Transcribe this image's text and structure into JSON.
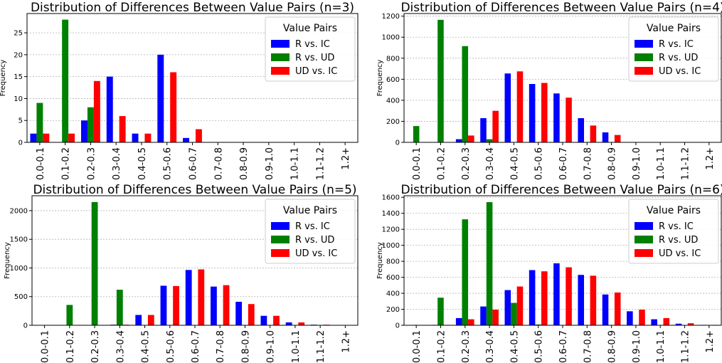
{
  "chart_data": [
    {
      "type": "bar",
      "title": "Distribution of Differences Between Value Pairs (n=3)",
      "xlabel": "",
      "ylabel": "Frequency",
      "ylim": [
        0,
        29.4
      ],
      "yticks": [
        0,
        5,
        10,
        15,
        20,
        25
      ],
      "grid": true,
      "legend": {
        "title": "Value Pairs",
        "placement": "top-right"
      },
      "categories": [
        "0.0-0.1",
        "0.1-0.2",
        "0.2-0.3",
        "0.3-0.4",
        "0.4-0.5",
        "0.5-0.6",
        "0.6-0.7",
        "0.7-0.8",
        "0.8-0.9",
        "0.9-1.0",
        "1.0-1.1",
        "1.1-1.2",
        "1.2+"
      ],
      "series": [
        {
          "name": "R vs. IC",
          "color": "#0000ff",
          "values": [
            2,
            0,
            5,
            15,
            2,
            20,
            1,
            0,
            0,
            0,
            0,
            0,
            0
          ]
        },
        {
          "name": "R vs. UD",
          "color": "#008000",
          "values": [
            9,
            28,
            8,
            0,
            0,
            0,
            0,
            0,
            0,
            0,
            0,
            0,
            0
          ]
        },
        {
          "name": "UD vs. IC",
          "color": "#ff0000",
          "values": [
            2,
            2,
            14,
            6,
            2,
            16,
            3,
            0,
            0,
            0,
            0,
            0,
            0
          ]
        }
      ]
    },
    {
      "type": "bar",
      "title": "Distribution of Differences Between Value Pairs (n=4)",
      "xlabel": "",
      "ylabel": "Frequency",
      "ylim": [
        0,
        1225
      ],
      "yticks": [
        0,
        200,
        400,
        600,
        800,
        1000,
        1200
      ],
      "grid": true,
      "legend": {
        "title": "Value Pairs",
        "placement": "top-right"
      },
      "categories": [
        "0.0-0.1",
        "0.1-0.2",
        "0.2-0.3",
        "0.3-0.4",
        "0.4-0.5",
        "0.5-0.6",
        "0.6-0.7",
        "0.7-0.8",
        "0.8-0.9",
        "0.9-1.0",
        "1.0-1.1",
        "1.1-1.2",
        "1.2+"
      ],
      "series": [
        {
          "name": "R vs. IC",
          "color": "#0000ff",
          "values": [
            0,
            0,
            30,
            230,
            655,
            555,
            465,
            230,
            95,
            0,
            0,
            0,
            0
          ]
        },
        {
          "name": "R vs. UD",
          "color": "#008000",
          "values": [
            155,
            1165,
            915,
            30,
            0,
            0,
            0,
            0,
            0,
            0,
            0,
            0,
            0
          ]
        },
        {
          "name": "UD vs. IC",
          "color": "#ff0000",
          "values": [
            0,
            0,
            65,
            300,
            675,
            565,
            425,
            160,
            70,
            0,
            0,
            0,
            0
          ]
        }
      ]
    },
    {
      "type": "bar",
      "title": "Distribution of Differences Between Value Pairs (n=5)",
      "xlabel": "",
      "ylabel": "Frequency",
      "ylim": [
        0,
        2260
      ],
      "yticks": [
        0,
        500,
        1000,
        1500,
        2000
      ],
      "grid": true,
      "legend": {
        "title": "Value Pairs",
        "placement": "top-right"
      },
      "categories": [
        "0.0-0.1",
        "0.1-0.2",
        "0.2-0.3",
        "0.3-0.4",
        "0.4-0.5",
        "0.5-0.6",
        "0.6-0.7",
        "0.7-0.8",
        "0.8-0.9",
        "0.9-1.0",
        "1.0-1.1",
        "1.1-1.2",
        "1.2+"
      ],
      "series": [
        {
          "name": "R vs. IC",
          "color": "#0000ff",
          "values": [
            0,
            0,
            0,
            10,
            180,
            690,
            965,
            675,
            410,
            165,
            50,
            10,
            5
          ]
        },
        {
          "name": "R vs. UD",
          "color": "#008000",
          "values": [
            5,
            355,
            2150,
            620,
            0,
            0,
            0,
            0,
            0,
            0,
            0,
            0,
            0
          ]
        },
        {
          "name": "UD vs. IC",
          "color": "#ff0000",
          "values": [
            0,
            0,
            0,
            10,
            180,
            685,
            975,
            700,
            370,
            165,
            50,
            10,
            5
          ]
        }
      ]
    },
    {
      "type": "bar",
      "title": "Distribution of Differences Between Value Pairs (n=6)",
      "xlabel": "",
      "ylabel": "Frequency",
      "ylim": [
        0,
        1620
      ],
      "yticks": [
        0,
        200,
        400,
        600,
        800,
        1000,
        1200,
        1400,
        1600
      ],
      "grid": true,
      "legend": {
        "title": "Value Pairs",
        "placement": "top-right"
      },
      "categories": [
        "0.0-0.1",
        "0.1-0.2",
        "0.2-0.3",
        "0.3-0.4",
        "0.4-0.5",
        "0.5-0.6",
        "0.6-0.7",
        "0.7-0.8",
        "0.8-0.9",
        "0.9-1.0",
        "1.0-1.1",
        "1.1-1.2",
        "1.2+"
      ],
      "series": [
        {
          "name": "R vs. IC",
          "color": "#0000ff",
          "values": [
            0,
            5,
            90,
            235,
            440,
            690,
            775,
            630,
            385,
            175,
            75,
            20,
            5
          ]
        },
        {
          "name": "R vs. UD",
          "color": "#008000",
          "values": [
            5,
            345,
            1325,
            1540,
            280,
            10,
            0,
            0,
            0,
            0,
            0,
            0,
            0
          ]
        },
        {
          "name": "UD vs. IC",
          "color": "#ff0000",
          "values": [
            0,
            5,
            75,
            195,
            485,
            675,
            725,
            620,
            410,
            195,
            90,
            25,
            5
          ]
        }
      ]
    }
  ]
}
